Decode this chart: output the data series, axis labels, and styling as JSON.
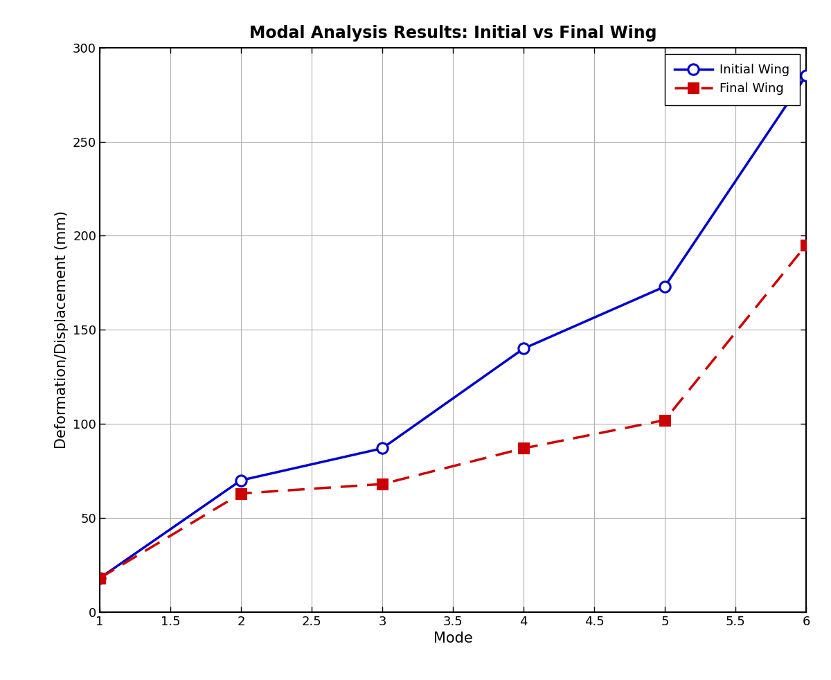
{
  "title": "Modal Analysis Results: Initial vs Final Wing",
  "xlabel": "Mode",
  "ylabel": "Deformation/Displacement (mm)",
  "modes": [
    1,
    2,
    3,
    4,
    5,
    6
  ],
  "initial_wing": [
    18,
    70,
    87,
    140,
    173,
    285
  ],
  "final_wing": [
    18,
    63,
    68,
    87,
    102,
    195
  ],
  "initial_color": "#0000CC",
  "final_color": "#CC0000",
  "xlim": [
    1,
    6
  ],
  "ylim": [
    0,
    300
  ],
  "yticks": [
    0,
    50,
    100,
    150,
    200,
    250,
    300
  ],
  "xticks": [
    1.0,
    1.5,
    2.0,
    2.5,
    3.0,
    3.5,
    4.0,
    4.5,
    5.0,
    5.5,
    6.0
  ],
  "legend_initial": "Initial Wing",
  "legend_final": "Final Wing",
  "bg_color": "#ffffff",
  "grid_color": "#b0b0b0",
  "title_fontsize": 17,
  "label_fontsize": 15,
  "tick_fontsize": 13,
  "legend_fontsize": 13
}
